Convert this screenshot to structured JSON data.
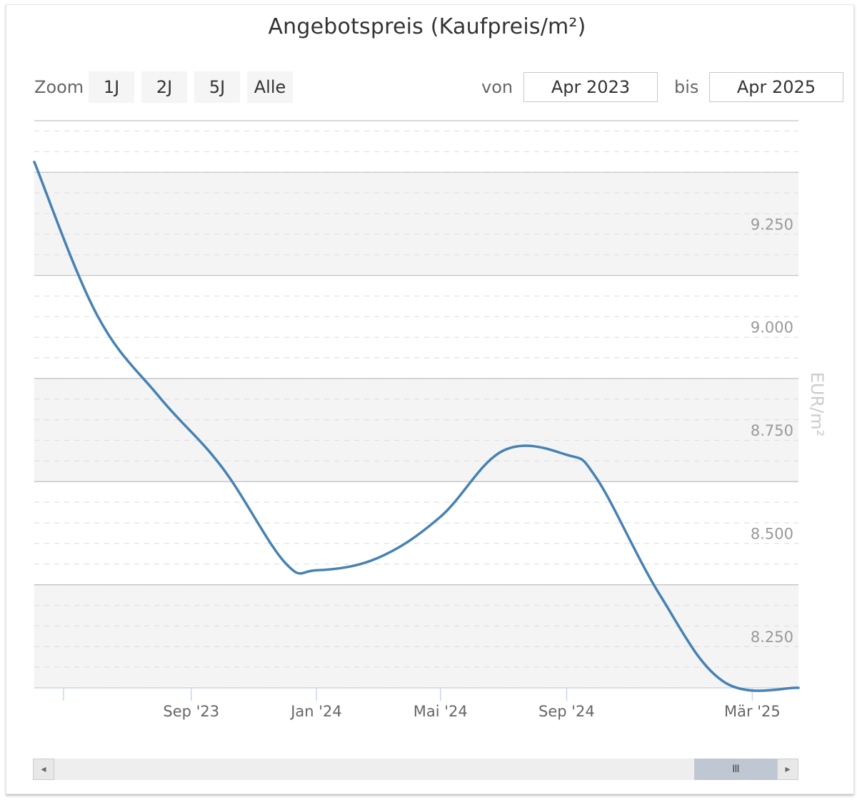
{
  "header": {
    "title": "Angebotspreis (Kaufpreis/m²)"
  },
  "range_selector": {
    "zoom_label": "Zoom",
    "buttons": [
      "1J",
      "2J",
      "5J",
      "Alle"
    ],
    "from_label": "von",
    "from_value": "Apr 2023",
    "to_label": "bis",
    "to_value": "Apr 2025"
  },
  "scrollbar": {
    "left_arrow": "◂",
    "right_arrow": "▸",
    "grip": "III"
  },
  "colors": {
    "line": "#4682b4",
    "band": "#f4f4f4",
    "grid": "#c0c0c0",
    "minor_grid": "#e0e0e0"
  },
  "chart_data": {
    "type": "line",
    "title": "Angebotspreis (Kaufpreis/m²)",
    "ylabel": "EUR/m²",
    "ylim": [
      8125,
      9500
    ],
    "yticks": [
      8250,
      8500,
      8750,
      9000,
      9250
    ],
    "ytick_labels": [
      "8.250",
      "8.500",
      "8.750",
      "9.000",
      "9.250"
    ],
    "xlim": [
      "2023-04-01",
      "2025-04-15"
    ],
    "xticks": [
      "2023-09-01",
      "2024-01-01",
      "2024-05-01",
      "2024-09-01",
      "2025-03-01"
    ],
    "xtick_labels": [
      "Sep '23",
      "Jan '24",
      "Mai '24",
      "Sep '24",
      "Mär '25"
    ],
    "grid": true,
    "series": [
      {
        "x": [
          "2023-04-01",
          "2023-06-01",
          "2023-08-01",
          "2023-10-01",
          "2023-12-01",
          "2024-01-01",
          "2024-03-01",
          "2024-05-01",
          "2024-07-01",
          "2024-09-01",
          "2024-10-01",
          "2024-12-01",
          "2025-02-01",
          "2025-04-15"
        ],
        "values": [
          9400,
          9030,
          8830,
          8660,
          8430,
          8410,
          8440,
          8540,
          8700,
          8690,
          8630,
          8350,
          8140,
          8125
        ]
      }
    ]
  }
}
